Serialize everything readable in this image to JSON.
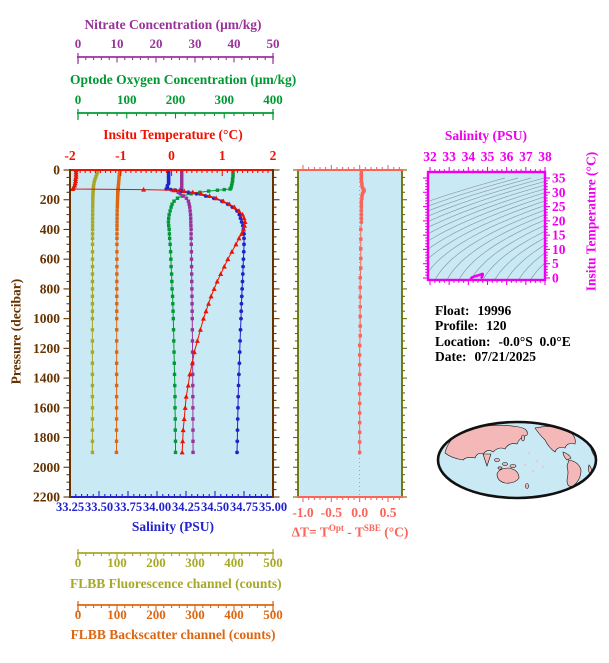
{
  "colors": {
    "background": "#ffffff",
    "plot_bg": "#c9e9f5",
    "nitrate": "#993399",
    "oxygen": "#009933",
    "temperature": "#ee1100",
    "pressure": "#663300",
    "salinity": "#2222cc",
    "fluorescence": "#a8a828",
    "backscatter": "#dd6611",
    "delta_t": "#fa6459",
    "dt_side_axis": "#6b6b00",
    "ts_magenta": "#ee00ee",
    "contour_gray": "#8b9aa5",
    "map_land": "#f4b8b8",
    "map_ocean": "#c9e9f5",
    "map_outline": "#111111",
    "info_text": "#000000"
  },
  "info_panel": {
    "lines": [
      {
        "label": "Float:",
        "value": "19996"
      },
      {
        "label": "Profile:",
        "value": "120"
      },
      {
        "label": "Location:",
        "value": "-0.0°S  0.0°E"
      },
      {
        "label": "Date:",
        "value": "07/21/2025"
      }
    ]
  },
  "chart_data": [
    {
      "id": "profile-plot",
      "type": "line",
      "description": "Vertical ocean profiles vs pressure; pressure increases downward",
      "pressure_axis": {
        "label": "Pressure (decibar)",
        "min": 0,
        "max": 2200,
        "major": 200,
        "minor": 50,
        "tick_labels": [
          "0",
          "200",
          "400",
          "600",
          "800",
          "1000",
          "1200",
          "1400",
          "1600",
          "1800",
          "2000",
          "2200"
        ]
      },
      "x_axes": [
        {
          "id": "temperature",
          "label": "Insitu Temperature (°C)",
          "min": -2,
          "max": 2,
          "major": 1,
          "minor": 0.1,
          "tick_labels": [
            "-2",
            "-1",
            "0",
            "1",
            "2"
          ],
          "color": "temperature"
        },
        {
          "id": "salinity",
          "label": "Salinity (PSU)",
          "min": 33.25,
          "max": 35.0,
          "major": 0.25,
          "minor": 0.05,
          "tick_labels": [
            "33.25",
            "33.50",
            "33.75",
            "34.00",
            "34.25",
            "34.50",
            "34.75",
            "35.00"
          ],
          "color": "salinity"
        },
        {
          "id": "oxygen",
          "label": "Optode Oxygen Concentration (μm/kg)",
          "min": 0,
          "max": 400,
          "major": 100,
          "minor": 20,
          "tick_labels": [
            "0",
            "100",
            "200",
            "300",
            "400"
          ],
          "color": "oxygen"
        },
        {
          "id": "nitrate",
          "label": "Nitrate Concentration (μm/kg)",
          "min": 0,
          "max": 50,
          "major": 10,
          "minor": 2,
          "tick_labels": [
            "0",
            "10",
            "20",
            "30",
            "40",
            "50"
          ],
          "color": "nitrate"
        },
        {
          "id": "fluorescence",
          "label": "FLBB Fluorescence channel (counts)",
          "min": 0,
          "max": 500,
          "major": 100,
          "minor": 20,
          "tick_labels": [
            "0",
            "100",
            "200",
            "300",
            "400",
            "500"
          ],
          "color": "fluorescence"
        },
        {
          "id": "backscatter",
          "label": "FLBB Backscatter channel (counts)",
          "min": 0,
          "max": 500,
          "major": 100,
          "minor": 20,
          "tick_labels": [
            "0",
            "100",
            "200",
            "300",
            "400",
            "500"
          ],
          "color": "backscatter"
        }
      ],
      "pressure_levels": [
        0,
        15,
        30,
        45,
        60,
        75,
        90,
        105,
        120,
        128,
        132,
        136,
        142,
        150,
        160,
        175,
        190,
        210,
        230,
        250,
        275,
        300,
        325,
        350,
        375,
        400,
        430,
        460,
        500,
        550,
        600,
        650,
        700,
        750,
        800,
        850,
        900,
        950,
        1000,
        1075,
        1150,
        1225,
        1300,
        1375,
        1450,
        1525,
        1600,
        1675,
        1750,
        1825,
        1900
      ],
      "series": [
        {
          "id": "temperature",
          "axis": "temperature",
          "marker": "triangle",
          "color": "temperature",
          "values": [
            -1.88,
            -1.88,
            -1.88,
            -1.88,
            -1.89,
            -1.89,
            -1.9,
            -1.91,
            -1.93,
            -1.95,
            -0.55,
            0.05,
            0.25,
            0.42,
            0.58,
            0.75,
            0.88,
            1.02,
            1.14,
            1.24,
            1.33,
            1.4,
            1.43,
            1.45,
            1.44,
            1.42,
            1.38,
            1.33,
            1.27,
            1.19,
            1.11,
            1.04,
            0.97,
            0.9,
            0.84,
            0.78,
            0.73,
            0.68,
            0.63,
            0.57,
            0.51,
            0.45,
            0.41,
            0.36,
            0.33,
            0.29,
            0.27,
            0.25,
            0.23,
            0.22,
            0.21
          ]
        },
        {
          "id": "salinity",
          "axis": "salinity",
          "marker": "circle",
          "color": "salinity",
          "values": [
            34.1,
            34.1,
            34.1,
            34.1,
            34.1,
            34.1,
            34.1,
            34.09,
            34.09,
            34.08,
            34.12,
            34.16,
            34.21,
            34.27,
            34.34,
            34.42,
            34.49,
            34.56,
            34.61,
            34.65,
            34.69,
            34.71,
            34.72,
            34.73,
            34.74,
            34.745,
            34.75,
            34.75,
            34.75,
            34.748,
            34.745,
            34.742,
            34.74,
            34.737,
            34.734,
            34.731,
            34.728,
            34.726,
            34.724,
            34.72,
            34.716,
            34.713,
            34.71,
            34.706,
            34.703,
            34.7,
            34.698,
            34.696,
            34.694,
            34.692,
            34.69
          ]
        },
        {
          "id": "oxygen",
          "axis": "oxygen",
          "marker": "square",
          "color": "oxygen",
          "values": [
            318,
            318,
            318,
            318,
            317,
            317,
            316,
            315,
            314,
            312,
            300,
            286,
            268,
            250,
            232,
            214,
            204,
            197,
            193,
            191,
            189,
            187,
            186,
            185.5,
            186,
            187,
            187.5,
            188,
            189,
            190,
            190.5,
            191,
            192,
            192.5,
            193,
            194,
            194.5,
            195,
            195.5,
            196,
            196.5,
            197,
            197.5,
            198,
            198.5,
            199,
            199,
            199.5,
            199.5,
            200,
            200
          ]
        },
        {
          "id": "nitrate",
          "axis": "nitrate",
          "marker": "square",
          "color": "nitrate",
          "values": [
            26.6,
            26.6,
            26.6,
            26.6,
            26.6,
            26.6,
            26.6,
            26.6,
            26.6,
            26.5,
            26.4,
            26.3,
            26.0,
            25.7,
            26.2,
            27.0,
            27.8,
            28.3,
            28.5,
            28.65,
            28.75,
            28.85,
            28.9,
            28.92,
            28.95,
            29.0,
            29.0,
            29.0,
            29.05,
            29.08,
            29.1,
            29.12,
            29.15,
            29.17,
            29.2,
            29.22,
            29.25,
            29.27,
            29.3,
            29.32,
            29.35,
            29.37,
            29.4,
            29.42,
            29.43,
            29.45,
            29.46,
            29.47,
            29.48,
            29.49,
            29.5
          ]
        },
        {
          "id": "fluorescence",
          "axis": "fluorescence",
          "marker": "square",
          "color": "fluorescence",
          "values": [
            52,
            50,
            48,
            46,
            44,
            42,
            41,
            40,
            39.5,
            39.3,
            39.2,
            39,
            38.8,
            38.6,
            38.4,
            38.2,
            38,
            37.9,
            37.8,
            37.7,
            37.6,
            37.5,
            37.5,
            37.4,
            37.4,
            37.4,
            37.3,
            37.3,
            37.3,
            37.2,
            37.2,
            37.2,
            37.1,
            37.1,
            37.1,
            37.1,
            37,
            37,
            37,
            37,
            37,
            36.9,
            36.9,
            36.9,
            37,
            37,
            37.1,
            37,
            36.9,
            37,
            37
          ]
        },
        {
          "id": "backscatter",
          "axis": "backscatter",
          "marker": "square",
          "color": "backscatter",
          "values": [
            108,
            107,
            106,
            105.5,
            105,
            104.5,
            104,
            103.5,
            103,
            102.8,
            102.6,
            102.5,
            102.3,
            102.1,
            102,
            101.7,
            101.5,
            101.2,
            101,
            100.8,
            100.5,
            100.3,
            100.2,
            100.1,
            100,
            100,
            99.9,
            99.9,
            99.8,
            99.8,
            99.7,
            99.7,
            99.6,
            99.6,
            99.5,
            99.5,
            99.4,
            99.4,
            99.3,
            99.3,
            99.2,
            99.2,
            99.1,
            99.1,
            99,
            99,
            98.9,
            98.9,
            98.8,
            98.7,
            98.6
          ]
        }
      ]
    },
    {
      "id": "delta-t-plot",
      "type": "line",
      "x_axis": {
        "label_parts": {
          "prefix": "ΔT= T",
          "sup1": "Opt",
          "mid": " - T",
          "sup2": "SBE",
          "suffix": " (°C)"
        },
        "min": -1.0,
        "max": 0.5,
        "major": 0.5,
        "minor": 0.1,
        "tick_labels": [
          "-1.0",
          "-0.5",
          "0.0",
          "0.5"
        ],
        "color": "delta_t"
      },
      "series": [
        {
          "id": "delta_t",
          "marker": "square",
          "color": "delta_t",
          "pressures": [
            0,
            15,
            30,
            45,
            60,
            75,
            90,
            105,
            120,
            130,
            140,
            150,
            160,
            175,
            190,
            210,
            230,
            250,
            275,
            300,
            325,
            350,
            400,
            465,
            530,
            595,
            660,
            725,
            790,
            855,
            920,
            985,
            1050,
            1115,
            1180,
            1245,
            1310,
            1375,
            1440,
            1505,
            1570,
            1635,
            1700,
            1765,
            1830,
            1900
          ],
          "values": [
            0.03,
            0.03,
            0.03,
            0.03,
            0.03,
            0.03,
            0.04,
            0.04,
            0.05,
            0.07,
            0.08,
            0.06,
            0.05,
            0.04,
            0.04,
            0.03,
            0.03,
            0.03,
            0.03,
            0.03,
            0.03,
            0.03,
            0.02,
            0.02,
            0.02,
            0.02,
            0.02,
            0.01,
            0.01,
            0.01,
            0.01,
            0.01,
            0.01,
            0.01,
            0,
            0,
            0,
            0,
            0,
            0,
            0,
            0,
            0,
            0,
            0,
            0
          ]
        }
      ]
    },
    {
      "id": "ts-diagram",
      "type": "line",
      "x_axis": {
        "label": "Salinity (PSU)",
        "min": 32,
        "max": 38,
        "major": 1,
        "minor": 0.25,
        "tick_labels": [
          "32",
          "33",
          "34",
          "35",
          "36",
          "37",
          "38"
        ],
        "color": "ts_magenta"
      },
      "y_axis": {
        "label": "Insitu Temperature (°C)",
        "min": 0,
        "max": 35,
        "major": 5,
        "minor": 1,
        "tick_labels": [
          "0",
          "5",
          "10",
          "15",
          "20",
          "25",
          "30",
          "35"
        ],
        "color": "ts_magenta"
      },
      "contours": {
        "description": "sigma-theta isopycnal contours",
        "sigma_min": 20.5,
        "sigma_max": 30,
        "step": 0.5
      },
      "series": [
        {
          "id": "ts-curve",
          "note": "temperature vs salinity pairs from profile-plot series, plotted magenta"
        }
      ]
    }
  ]
}
